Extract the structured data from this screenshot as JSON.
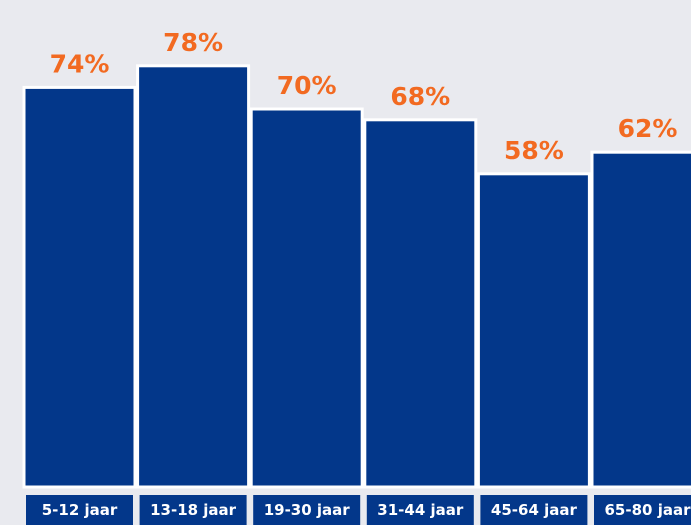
{
  "chart_data": {
    "type": "bar",
    "categories": [
      "5-12 jaar",
      "13-18 jaar",
      "19-30 jaar",
      "31-44 jaar",
      "45-64 jaar",
      "65-80 jaar"
    ],
    "values": [
      74,
      78,
      70,
      68,
      58,
      62
    ],
    "value_labels": [
      "74%",
      "78%",
      "70%",
      "68%",
      "58%",
      "62%"
    ],
    "ylim": [
      0,
      100
    ],
    "grid": false,
    "legend": "none",
    "colors": {
      "background": "#e9eaef",
      "bar": "#03378a",
      "bar_outline": "#ffffff",
      "value_label": "#f26a21",
      "category_box": "#03378a",
      "category_text": "#ffffff"
    }
  }
}
